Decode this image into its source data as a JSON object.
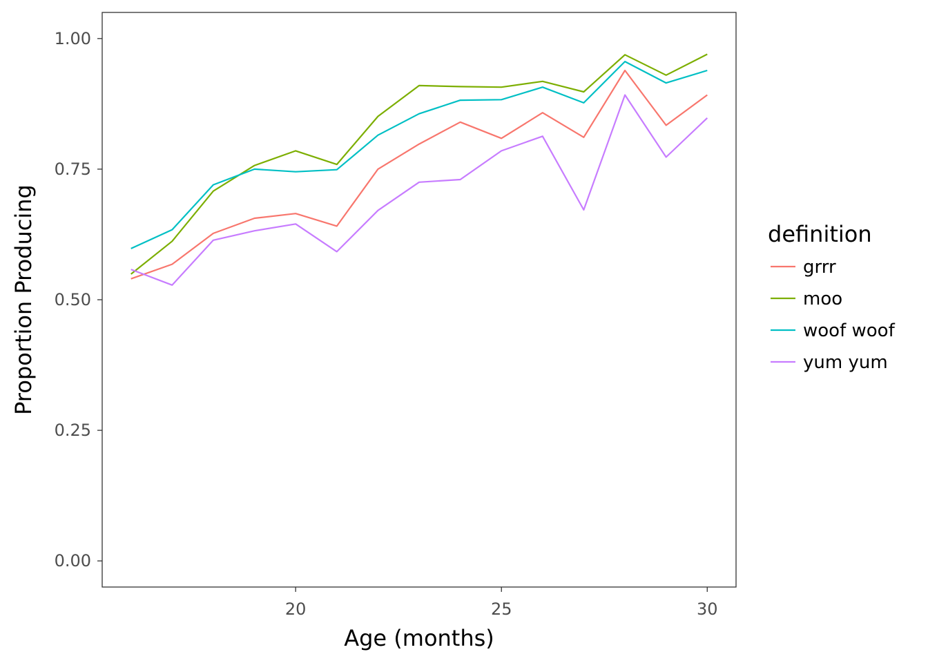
{
  "chart_data": {
    "type": "line",
    "title": "",
    "xlabel": "Age (months)",
    "ylabel": "Proportion Producing",
    "x": [
      16,
      17,
      18,
      19,
      20,
      21,
      22,
      23,
      24,
      25,
      26,
      27,
      28,
      29,
      30
    ],
    "xlim": [
      15.3,
      30.7
    ],
    "ylim": [
      -0.05,
      1.05
    ],
    "xticks": [
      20,
      25,
      30
    ],
    "xtick_labels": [
      "20",
      "25",
      "30"
    ],
    "yticks": [
      0,
      0.25,
      0.5,
      0.75,
      1.0
    ],
    "ytick_labels": [
      "0.00",
      "0.25",
      "0.50",
      "0.75",
      "1.00"
    ],
    "grid": false,
    "legend": {
      "title": "definition",
      "position": "right"
    },
    "series": [
      {
        "name": "grrr",
        "color": "#F8766D",
        "values": [
          0.54,
          0.568,
          0.627,
          0.656,
          0.665,
          0.641,
          0.75,
          0.798,
          0.84,
          0.809,
          0.858,
          0.811,
          0.939,
          0.834,
          0.892
        ]
      },
      {
        "name": "moo",
        "color": "#7CAE00",
        "values": [
          0.549,
          0.612,
          0.708,
          0.757,
          0.785,
          0.759,
          0.851,
          0.91,
          0.908,
          0.907,
          0.918,
          0.898,
          0.969,
          0.93,
          0.97
        ]
      },
      {
        "name": "woof woof",
        "color": "#00BFC4",
        "values": [
          0.598,
          0.634,
          0.72,
          0.75,
          0.745,
          0.749,
          0.815,
          0.856,
          0.882,
          0.883,
          0.907,
          0.877,
          0.956,
          0.915,
          0.939
        ]
      },
      {
        "name": "yum yum",
        "color": "#C77CFF",
        "values": [
          0.558,
          0.528,
          0.614,
          0.632,
          0.645,
          0.592,
          0.671,
          0.725,
          0.73,
          0.785,
          0.813,
          0.672,
          0.892,
          0.773,
          0.848
        ]
      }
    ]
  }
}
